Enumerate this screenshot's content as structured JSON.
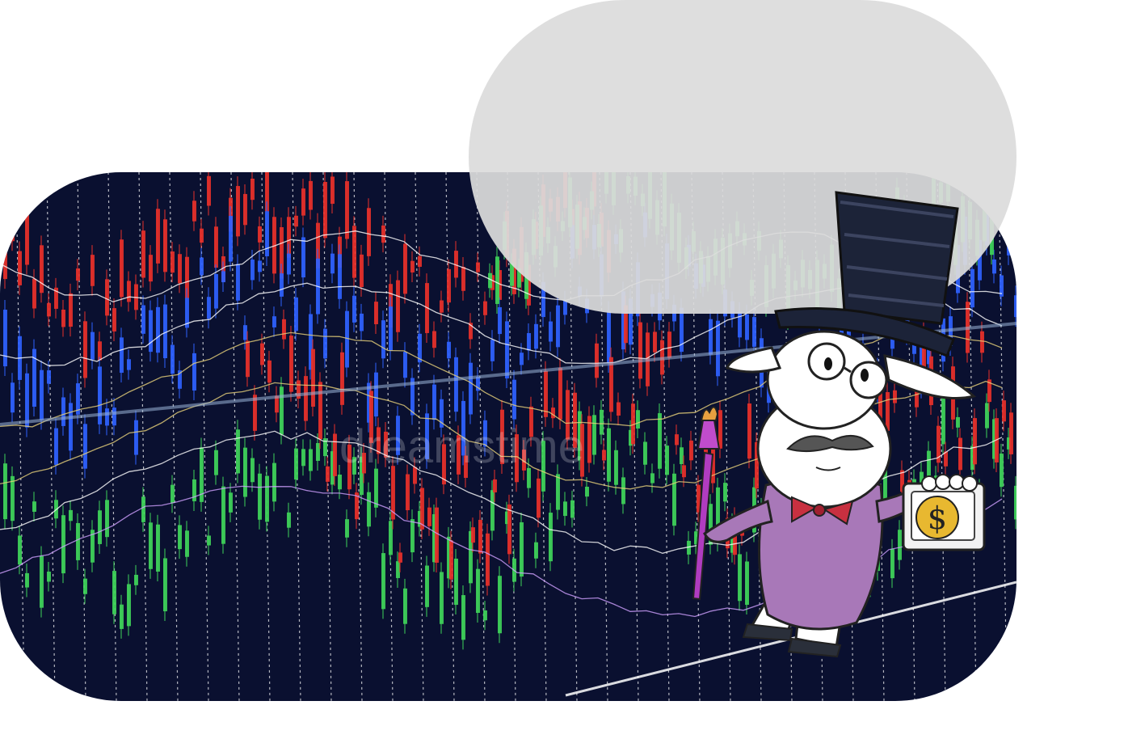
{
  "scene": {
    "background_color": "#ffffff",
    "speech_bubble_color": "#dcdcdc",
    "chart_panel_color": "#0a1030",
    "colors": {
      "red": "#e8312a",
      "blue": "#2f62ff",
      "green": "#3fd45a",
      "white": "#ffffff",
      "yellow": "#e9d27a"
    }
  },
  "watermark": {
    "text": "dreamstime"
  },
  "character": {
    "icon": "rich-sheep-cartoon",
    "hat_icon": "top-hat-icon",
    "cane_icon": "torch-cane-icon",
    "sign_icon": "dollar-sign-icon",
    "sign_text": "$",
    "coat_color": "#a878b8"
  }
}
